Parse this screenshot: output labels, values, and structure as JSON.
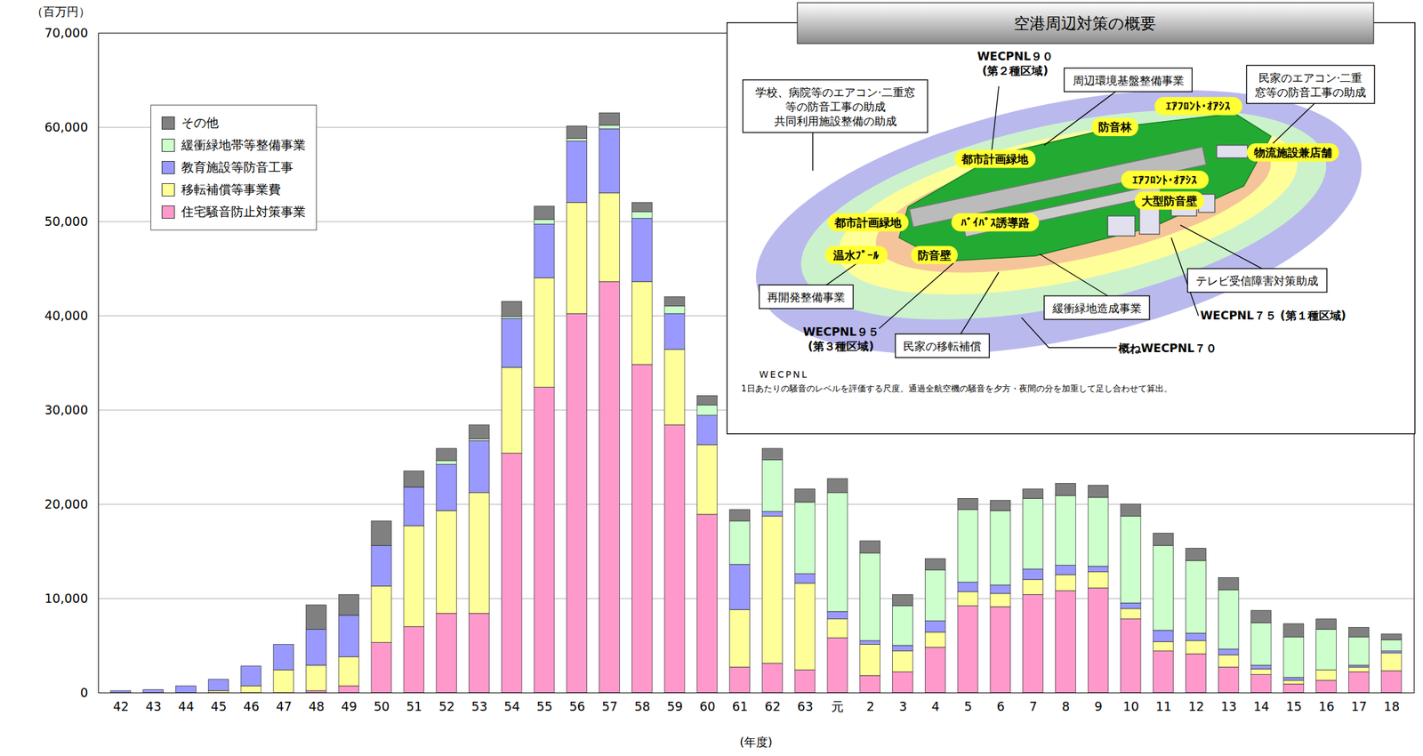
{
  "chart_data": {
    "type": "bar",
    "stacked": true,
    "y_label": "（百万円）",
    "x_label": "(年度)",
    "categories": [
      "42",
      "43",
      "44",
      "45",
      "46",
      "47",
      "48",
      "49",
      "50",
      "51",
      "52",
      "53",
      "54",
      "55",
      "56",
      "57",
      "58",
      "59",
      "60",
      "61",
      "62",
      "63",
      "元",
      "2",
      "3",
      "4",
      "5",
      "6",
      "7",
      "8",
      "9",
      "10",
      "11",
      "12",
      "13",
      "14",
      "15",
      "16",
      "17",
      "18"
    ],
    "series": [
      {
        "name": "住宅騒音防止対策事業",
        "color": "#ff99cc",
        "values": [
          0,
          0,
          0,
          0,
          0,
          0,
          200,
          700,
          5300,
          7000,
          8400,
          8400,
          25400,
          32400,
          40200,
          43600,
          34800,
          28400,
          18900,
          2700,
          3100,
          2400,
          5800,
          1800,
          2200,
          4800,
          9200,
          9100,
          10400,
          10800,
          11100,
          7800,
          4400,
          4100,
          2700,
          1900,
          900,
          1300,
          2200,
          2300
        ]
      },
      {
        "name": "移転補償等事業費",
        "color": "#ffff99",
        "values": [
          0,
          0,
          0,
          200,
          700,
          2400,
          2700,
          3100,
          6000,
          10700,
          10900,
          12800,
          9100,
          11600,
          11800,
          9400,
          8800,
          8000,
          7400,
          6100,
          15600,
          9200,
          2000,
          3300,
          2200,
          1600,
          1500,
          1400,
          1600,
          1700,
          1700,
          1100,
          1000,
          1400,
          1300,
          600,
          400,
          1100,
          500,
          1900
        ]
      },
      {
        "name": "教育施設等防音工事",
        "color": "#9999ff",
        "values": [
          200,
          300,
          700,
          1200,
          2100,
          2700,
          3800,
          4400,
          4300,
          4100,
          4900,
          5500,
          5200,
          5700,
          6500,
          6800,
          6700,
          3800,
          3100,
          4800,
          500,
          1000,
          800,
          400,
          600,
          1200,
          1000,
          900,
          1100,
          1000,
          600,
          600,
          1200,
          800,
          600,
          400,
          300,
          0,
          200,
          200
        ]
      },
      {
        "name": "緩衝緑地帯等整備事業",
        "color": "#ccffcc",
        "values": [
          0,
          0,
          0,
          0,
          0,
          0,
          0,
          0,
          0,
          0,
          400,
          200,
          200,
          500,
          300,
          400,
          700,
          800,
          1100,
          4600,
          5500,
          7600,
          12600,
          9300,
          4200,
          5400,
          7700,
          7900,
          7500,
          7400,
          7300,
          9200,
          9000,
          7700,
          6300,
          4500,
          4300,
          4300,
          3000,
          1200
        ]
      },
      {
        "name": "その他",
        "color": "#808080",
        "values": [
          0,
          0,
          0,
          0,
          0,
          0,
          2600,
          2200,
          2600,
          1700,
          1300,
          1500,
          1600,
          1400,
          1300,
          1300,
          1000,
          1000,
          1000,
          1200,
          1200,
          1400,
          1500,
          1300,
          1200,
          1200,
          1200,
          1100,
          1000,
          1300,
          1300,
          1300,
          1300,
          1300,
          1300,
          1300,
          1400,
          1100,
          1000,
          600
        ]
      }
    ],
    "ylim": [
      0,
      70000
    ],
    "yticks": [
      0,
      {
        "value": 10000,
        "label": "10,000"
      },
      {
        "value": 20000,
        "label": "20,000"
      },
      {
        "value": 30000,
        "label": "30,000"
      },
      {
        "value": 40000,
        "label": "40,000"
      },
      {
        "value": 50000,
        "label": "50,000"
      },
      {
        "value": 60000,
        "label": "60,000"
      },
      {
        "value": 70000,
        "label": "70,000"
      }
    ],
    "grid": true,
    "legend": "top-left",
    "inset": {
      "title": "空港周辺対策の概要",
      "highlight_labels": [
        "防音林",
        "ｴｱﾌﾛﾝﾄ･ｵｱｼｽ",
        "都市計画緑地",
        "ｴｱﾌﾛﾝﾄ･ｵｱｼｽ",
        "物流施設兼店舗",
        "大型防音壁",
        "都市計画緑地",
        "ﾊﾞｲﾊﾟｽ誘導路",
        "温水ﾌﾟｰﾙ",
        "防音壁"
      ],
      "callouts": [
        {
          "lines": [
            "学校、病院等のエアコン·二重窓",
            "等の防音工事の助成",
            "共同利用施設整備の助成"
          ]
        },
        {
          "lines": [
            "周辺環境基盤整備事業"
          ]
        },
        {
          "lines": [
            "民家のエアコン·二重",
            "窓等の防音工事の助成"
          ]
        },
        {
          "lines": [
            "テレビ受信障害対策助成"
          ]
        },
        {
          "lines": [
            "再開発整備事業"
          ]
        },
        {
          "lines": [
            "緩衝緑地造成事業"
          ]
        },
        {
          "lines": [
            "民家の移転補償"
          ]
        }
      ],
      "zone_labels": [
        {
          "lines": [
            "WECPNL９０",
            "(第２種区域)"
          ]
        },
        {
          "lines": [
            "WECPNL９５",
            "(第３種区域)"
          ]
        },
        {
          "lines": [
            "概ねWECPNL７０"
          ]
        },
        {
          "lines": [
            "WECPNL７５ (第１種区域)"
          ]
        }
      ],
      "note": {
        "term": "WECPNL",
        "text": "1日あたりの騒音のレベルを評価する尺度。通過全航空機の騒音を夕方・夜間の分を加重して足し合わせて算出。"
      }
    }
  }
}
